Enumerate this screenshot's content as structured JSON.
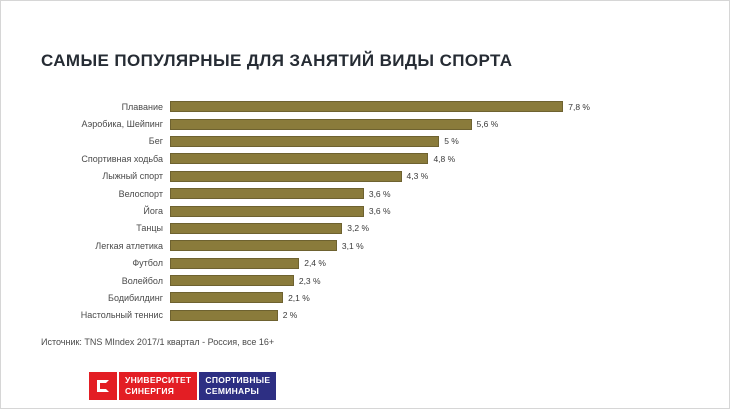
{
  "slide": {
    "title": "САМЫЕ ПОПУЛЯРНЫЕ ДЛЯ ЗАНЯТИЙ ВИДЫ СПОРТА",
    "source": "Источник:  TNS MIndex 2017/1 квартал - Россия, все 16+"
  },
  "chart_data": {
    "type": "bar",
    "orientation": "horizontal",
    "title": "САМЫЕ ПОПУЛЯРНЫЕ ДЛЯ ЗАНЯТИЙ ВИДЫ СПОРТА",
    "categories": [
      "Плавание",
      "Аэробика, Шейпинг",
      "Бег",
      "Спортивная ходьба",
      "Лыжный спорт",
      "Велоспорт",
      "Йога",
      "Танцы",
      "Легкая атлетика",
      "Футбол",
      "Волейбол",
      "Бодибилдинг",
      "Настольный теннис"
    ],
    "values": [
      7.8,
      5.6,
      5.0,
      4.8,
      4.3,
      3.6,
      3.6,
      3.2,
      3.1,
      2.4,
      2.3,
      2.1,
      2.0
    ],
    "value_labels": [
      "7,8 %",
      "5,6 %",
      "5 %",
      "4,8 %",
      "4,3 %",
      "3,6 %",
      "3,6 %",
      "3,2 %",
      "3,1 %",
      "2,4 %",
      "2,3 %",
      "2,1 %",
      "2 %"
    ],
    "xlim": [
      0,
      8
    ],
    "grid": false,
    "legend": false,
    "bar_color": "#8a7b3b"
  },
  "footer": {
    "logo": {
      "icon": "synergy-logo-icon",
      "line1": "УНИВЕРСИТЕТ",
      "line2": "СИНЕРГИЯ",
      "line3": "СПОРТИВНЫЕ",
      "line4": "СЕМИНАРЫ",
      "red": "#e31e24",
      "navy": "#2d2f83"
    }
  }
}
